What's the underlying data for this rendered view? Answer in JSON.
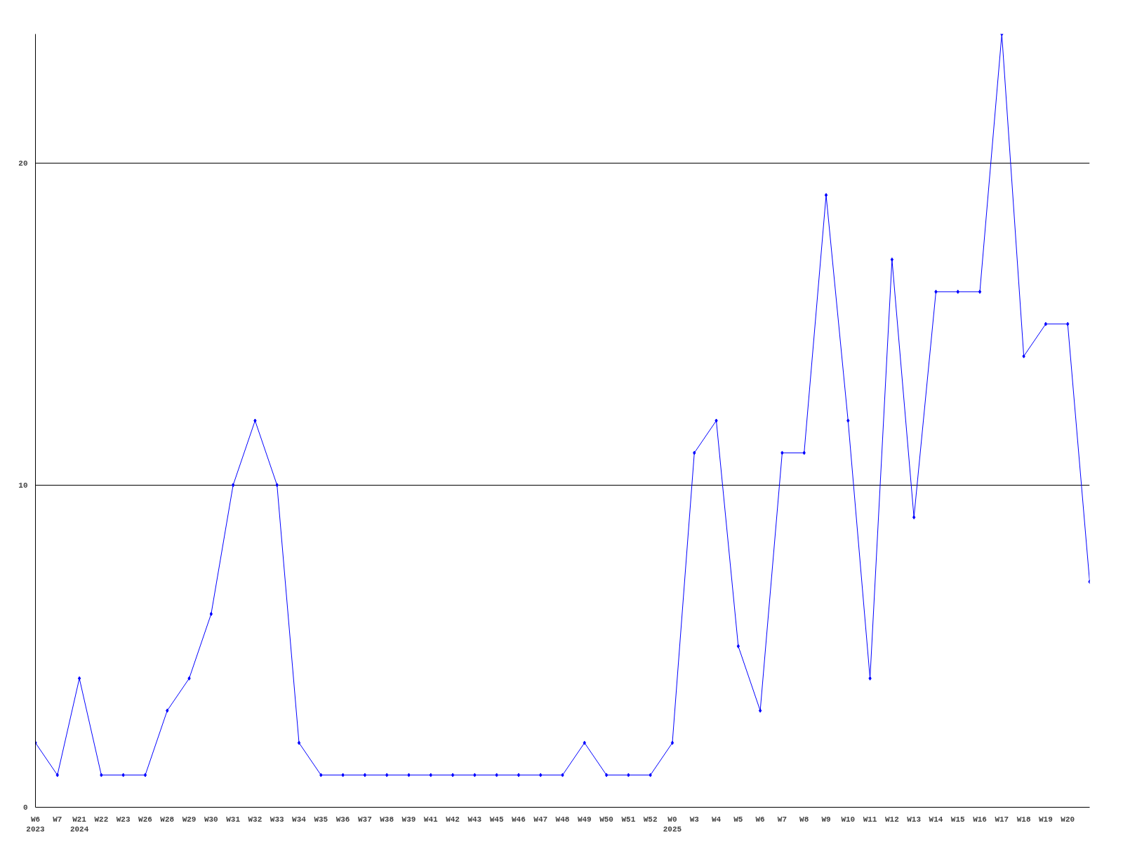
{
  "chart_data": {
    "type": "line",
    "categories": [
      "W6\n2023",
      "W7",
      "W21\n2024",
      "W22",
      "W23",
      "W26",
      "W28",
      "W29",
      "W30",
      "W31",
      "W32",
      "W33",
      "W34",
      "W35",
      "W36",
      "W37",
      "W38",
      "W39",
      "W41",
      "W42",
      "W43",
      "W45",
      "W46",
      "W47",
      "W48",
      "W49",
      "W50",
      "W51",
      "W52",
      "W0\n2025",
      "W3",
      "W4",
      "W5",
      "W6",
      "W7",
      "W8",
      "W9",
      "W10",
      "W11",
      "W12",
      "W13",
      "W14",
      "W15",
      "W16",
      "W17",
      "W18",
      "W19",
      "W20",
      null
    ],
    "series": [
      {
        "color": "#0000ff",
        "values": [
          2,
          1,
          4,
          1,
          1,
          1,
          3,
          4,
          6,
          10,
          12,
          10,
          2,
          1,
          1,
          1,
          1,
          1,
          1,
          1,
          1,
          1,
          1,
          1,
          1,
          2,
          1,
          1,
          1,
          2,
          11,
          12,
          5,
          3,
          11,
          11,
          19,
          12,
          4,
          17,
          9,
          16,
          16,
          16,
          24,
          14,
          15,
          15,
          7
        ]
      }
    ],
    "ylim": [
      0,
      24
    ],
    "yticks": [
      0,
      10,
      20
    ],
    "grid": "y",
    "marker": "diamond",
    "line_style": "solid"
  }
}
